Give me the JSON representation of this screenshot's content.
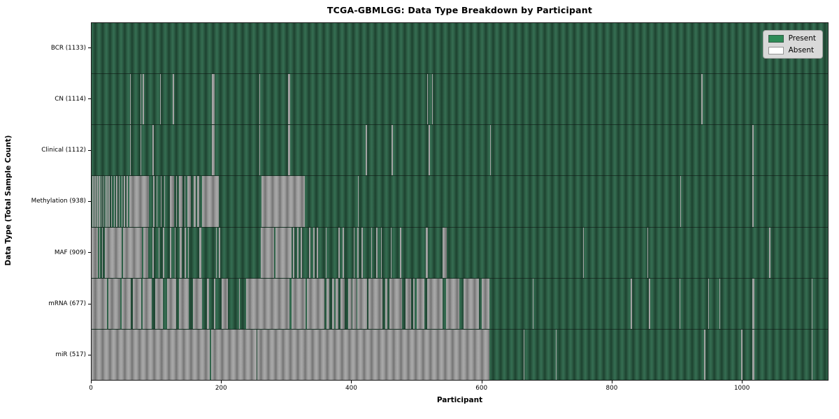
{
  "figure": {
    "title": "TCGA-GBMLGG: Data Type Breakdown by Participant",
    "xlabel": "Participant",
    "ylabel": "Data Type (Total Sample Count)"
  },
  "legend": {
    "items": [
      {
        "label": "Present",
        "color": "#2e8b57"
      },
      {
        "label": "Absent",
        "color": "#ffffff"
      }
    ]
  },
  "colors": {
    "present_legend": "#2e8b57",
    "absent_legend": "#ffffff",
    "present_rendered": "#2e6349",
    "absent_rendered": "#9b9b9b",
    "legend_bg": "#d9d9d9"
  },
  "chart_data": {
    "type": "heatmap",
    "title": "TCGA-GBMLGG: Data Type Breakdown by Participant",
    "xlabel": "Participant",
    "ylabel": "Data Type (Total Sample Count)",
    "legend": [
      "Present",
      "Absent"
    ],
    "legend_position": "upper right",
    "x_range": [
      0,
      1133
    ],
    "x_ticks": [
      0,
      200,
      400,
      600,
      800,
      1000
    ],
    "grid": false,
    "rows": [
      {
        "label": "BCR (1133)",
        "data_type": "BCR",
        "total_samples": 1133,
        "absent_ranges": []
      },
      {
        "label": "CN (1114)",
        "data_type": "CN",
        "total_samples": 1114,
        "absent_ranges": [
          [
            59,
            60.5
          ],
          [
            75,
            76.5
          ],
          [
            79,
            80.5
          ],
          [
            105,
            106.5
          ],
          [
            125,
            126.5
          ],
          [
            185,
            189
          ],
          [
            258,
            259.5
          ],
          [
            302,
            306
          ],
          [
            516,
            517.5
          ],
          [
            524,
            525.5
          ],
          [
            938,
            940
          ]
        ]
      },
      {
        "label": "Clinical (1112)",
        "data_type": "Clinical",
        "total_samples": 1112,
        "absent_ranges": [
          [
            59,
            60.5
          ],
          [
            75,
            76.5
          ],
          [
            94,
            95.5
          ],
          [
            185,
            189
          ],
          [
            258,
            259
          ],
          [
            302,
            306
          ],
          [
            422,
            423.5
          ],
          [
            462,
            463.5
          ],
          [
            519,
            520.5
          ],
          [
            613,
            614.5
          ],
          [
            1017,
            1018.5
          ]
        ]
      },
      {
        "label": "Methylation (938)",
        "data_type": "Methylation",
        "total_samples": 938,
        "absent_ranges": [
          [
            1.5,
            3
          ],
          [
            4.5,
            6
          ],
          [
            8,
            9.5
          ],
          [
            11,
            12.5
          ],
          [
            14,
            15.5
          ],
          [
            17,
            18.5
          ],
          [
            20,
            21.5
          ],
          [
            23,
            24.5
          ],
          [
            26,
            27.5
          ],
          [
            30,
            31.5
          ],
          [
            34,
            35.5
          ],
          [
            38,
            39.5
          ],
          [
            42,
            43.5
          ],
          [
            46,
            47.5
          ],
          [
            50,
            51.5
          ],
          [
            54,
            55.5
          ],
          [
            58,
            88
          ],
          [
            95,
            96.5
          ],
          [
            100,
            101.5
          ],
          [
            106,
            107.5
          ],
          [
            112,
            113.5
          ],
          [
            120,
            127
          ],
          [
            130,
            131.5
          ],
          [
            134,
            140
          ],
          [
            143,
            144.5
          ],
          [
            147,
            153
          ],
          [
            157,
            160
          ],
          [
            163,
            166
          ],
          [
            170,
            196
          ],
          [
            261,
            328
          ],
          [
            410,
            411
          ],
          [
            906,
            907.5
          ],
          [
            1017,
            1018.5
          ]
        ]
      },
      {
        "label": "MAF (909)",
        "data_type": "MAF",
        "total_samples": 909,
        "absent_ranges": [
          [
            0,
            10
          ],
          [
            12,
            13
          ],
          [
            16,
            17
          ],
          [
            20,
            46
          ],
          [
            48,
            78
          ],
          [
            80,
            87
          ],
          [
            94,
            96
          ],
          [
            103,
            104.5
          ],
          [
            110,
            112
          ],
          [
            121,
            122.5
          ],
          [
            128,
            129.5
          ],
          [
            136,
            139
          ],
          [
            143,
            145
          ],
          [
            148,
            150
          ],
          [
            166,
            169
          ],
          [
            191,
            193
          ],
          [
            196,
            197.5
          ],
          [
            260,
            281
          ],
          [
            283,
            308
          ],
          [
            310,
            312
          ],
          [
            316,
            318
          ],
          [
            322,
            324
          ],
          [
            335,
            337
          ],
          [
            341,
            343
          ],
          [
            347,
            349
          ],
          [
            360,
            362
          ],
          [
            380,
            382
          ],
          [
            386,
            388
          ],
          [
            403,
            405
          ],
          [
            409,
            411
          ],
          [
            415,
            417
          ],
          [
            430,
            432
          ],
          [
            438,
            440
          ],
          [
            445,
            447
          ],
          [
            460,
            462
          ],
          [
            474,
            477
          ],
          [
            514,
            518
          ],
          [
            540,
            547
          ],
          [
            756,
            757.5
          ],
          [
            855,
            856.5
          ],
          [
            1043,
            1044.5
          ]
        ]
      },
      {
        "label": "mRNA (677)",
        "data_type": "mRNA",
        "total_samples": 677,
        "absent_ranges": [
          [
            0,
            24
          ],
          [
            26,
            44
          ],
          [
            46,
            60
          ],
          [
            63,
            76
          ],
          [
            79,
            93
          ],
          [
            98,
            110
          ],
          [
            116,
            130
          ],
          [
            134,
            150
          ],
          [
            156,
            170
          ],
          [
            178,
            181
          ],
          [
            188,
            190
          ],
          [
            200,
            210
          ],
          [
            227,
            228.5
          ],
          [
            238,
            305
          ],
          [
            308,
            329
          ],
          [
            331,
            358
          ],
          [
            362,
            366
          ],
          [
            370,
            373
          ],
          [
            375,
            380
          ],
          [
            383,
            389
          ],
          [
            395,
            400
          ],
          [
            401,
            408
          ],
          [
            409,
            424
          ],
          [
            426,
            448
          ],
          [
            452,
            455
          ],
          [
            458,
            478
          ],
          [
            483,
            492
          ],
          [
            495,
            497
          ],
          [
            500,
            512
          ],
          [
            517,
            540
          ],
          [
            546,
            566
          ],
          [
            572,
            596
          ],
          [
            600,
            612
          ],
          [
            679,
            680.5
          ],
          [
            830,
            831.5
          ],
          [
            858,
            859.5
          ],
          [
            885,
            886
          ],
          [
            905,
            906.5
          ],
          [
            949,
            950.5
          ],
          [
            966,
            967.5
          ],
          [
            1017,
            1020
          ],
          [
            1108,
            1109.5
          ]
        ]
      },
      {
        "label": "miR (517)",
        "data_type": "miR",
        "total_samples": 517,
        "absent_ranges": [
          [
            0,
            182
          ],
          [
            184,
            254
          ],
          [
            255,
            612
          ],
          [
            665,
            666.5
          ],
          [
            714,
            715.5
          ],
          [
            943,
            944.5
          ],
          [
            1000,
            1001.5
          ],
          [
            1017,
            1020
          ],
          [
            1108,
            1109.5
          ]
        ]
      }
    ]
  }
}
